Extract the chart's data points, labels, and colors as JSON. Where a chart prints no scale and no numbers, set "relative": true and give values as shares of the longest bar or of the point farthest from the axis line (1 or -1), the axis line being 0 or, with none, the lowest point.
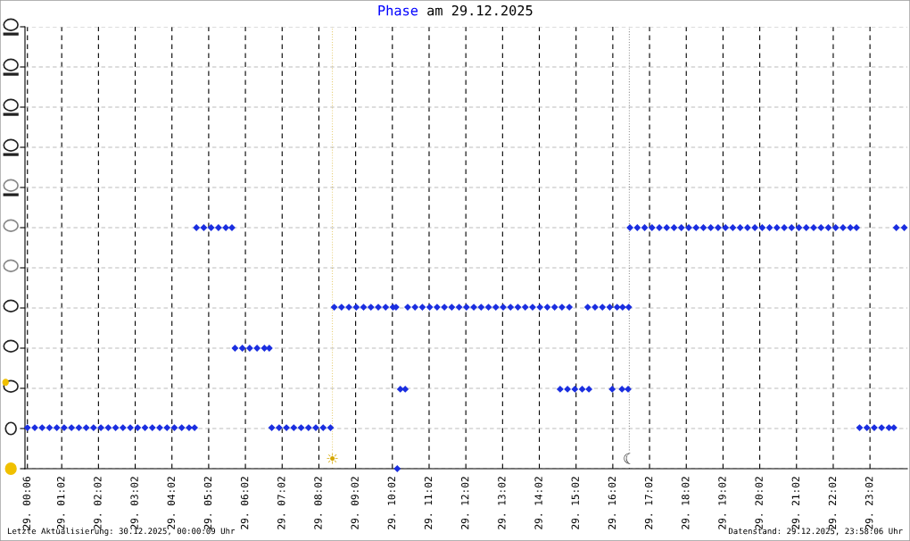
{
  "chart_data": {
    "type": "scatter",
    "title": "Phase am 29.12.2025",
    "annotations": [
      "Letzte Aktualisierung: 30.12.2025, 00:00:09 Uhr",
      "Datenstand: 29.12.2025, 23:58:06 Uhr"
    ],
    "ref_lines": [
      {
        "axis": "x",
        "value": "2025-12-29T08:24",
        "label": "☀",
        "color": "#d4a600"
      },
      {
        "axis": "x",
        "value": "2025-12-29T16:29",
        "label": "☾",
        "color": "#333333"
      }
    ],
    "series": [
      {
        "color": "#1a2ee0",
        "x": [
          "2025-12-29T00:06",
          "2025-12-29T00:18",
          "2025-12-29T00:30",
          "2025-12-29T00:42",
          "2025-12-29T00:54",
          "2025-12-29T01:06",
          "2025-12-29T01:18",
          "2025-12-29T01:30",
          "2025-12-29T01:42",
          "2025-12-29T01:54",
          "2025-12-29T02:06",
          "2025-12-29T02:18",
          "2025-12-29T02:30",
          "2025-12-29T02:42",
          "2025-12-29T02:54",
          "2025-12-29T03:06",
          "2025-12-29T03:18",
          "2025-12-29T03:30",
          "2025-12-29T03:42",
          "2025-12-29T03:54",
          "2025-12-29T04:06",
          "2025-12-29T04:18",
          "2025-12-29T04:30",
          "2025-12-29T04:39",
          "2025-12-29T04:42",
          "2025-12-29T04:54",
          "2025-12-29T05:06",
          "2025-12-29T05:18",
          "2025-12-29T05:30",
          "2025-12-29T05:40",
          "2025-12-29T05:45",
          "2025-12-29T05:57",
          "2025-12-29T06:09",
          "2025-12-29T06:21",
          "2025-12-29T06:33",
          "2025-12-29T06:41",
          "2025-12-29T06:45",
          "2025-12-29T06:57",
          "2025-12-29T07:09",
          "2025-12-29T07:21",
          "2025-12-29T07:33",
          "2025-12-29T07:45",
          "2025-12-29T07:57",
          "2025-12-29T08:09",
          "2025-12-29T08:21",
          "2025-12-29T08:27",
          "2025-12-29T08:39",
          "2025-12-29T08:51",
          "2025-12-29T09:03",
          "2025-12-29T09:15",
          "2025-12-29T09:27",
          "2025-12-29T09:39",
          "2025-12-29T09:51",
          "2025-12-29T10:03",
          "2025-12-29T10:08",
          "2025-12-29T10:10",
          "2025-12-29T10:15",
          "2025-12-29T10:23",
          "2025-12-29T10:27",
          "2025-12-29T10:39",
          "2025-12-29T10:51",
          "2025-12-29T11:03",
          "2025-12-29T11:15",
          "2025-12-29T11:27",
          "2025-12-29T11:39",
          "2025-12-29T11:51",
          "2025-12-29T12:03",
          "2025-12-29T12:15",
          "2025-12-29T12:27",
          "2025-12-29T12:39",
          "2025-12-29T12:51",
          "2025-12-29T13:03",
          "2025-12-29T13:15",
          "2025-12-29T13:27",
          "2025-12-29T13:39",
          "2025-12-29T13:51",
          "2025-12-29T14:03",
          "2025-12-29T14:15",
          "2025-12-29T14:27",
          "2025-12-29T14:39",
          "2025-12-29T14:51",
          "2025-12-29T14:36",
          "2025-12-29T14:48",
          "2025-12-29T15:00",
          "2025-12-29T15:12",
          "2025-12-29T15:23",
          "2025-12-29T15:21",
          "2025-12-29T15:33",
          "2025-12-29T15:45",
          "2025-12-29T15:57",
          "2025-12-29T16:09",
          "2025-12-29T16:18",
          "2025-12-29T16:28",
          "2025-12-29T16:01",
          "2025-12-29T16:17",
          "2025-12-29T16:27",
          "2025-12-29T16:30",
          "2025-12-29T16:42",
          "2025-12-29T16:54",
          "2025-12-29T17:06",
          "2025-12-29T17:18",
          "2025-12-29T17:30",
          "2025-12-29T17:42",
          "2025-12-29T17:54",
          "2025-12-29T18:06",
          "2025-12-29T18:18",
          "2025-12-29T18:30",
          "2025-12-29T18:42",
          "2025-12-29T18:54",
          "2025-12-29T19:06",
          "2025-12-29T19:18",
          "2025-12-29T19:30",
          "2025-12-29T19:42",
          "2025-12-29T19:54",
          "2025-12-29T20:06",
          "2025-12-29T20:18",
          "2025-12-29T20:30",
          "2025-12-29T20:42",
          "2025-12-29T20:54",
          "2025-12-29T21:06",
          "2025-12-29T21:18",
          "2025-12-29T21:30",
          "2025-12-29T21:42",
          "2025-12-29T21:54",
          "2025-12-29T22:06",
          "2025-12-29T22:18",
          "2025-12-29T22:30",
          "2025-12-29T22:40",
          "2025-12-29T22:45",
          "2025-12-29T22:57",
          "2025-12-29T23:09",
          "2025-12-29T23:21",
          "2025-12-29T23:33",
          "2025-12-29T23:41",
          "2025-12-29T23:45",
          "2025-12-29T23:58"
        ],
        "values": [
          0.17,
          0.17,
          0.17,
          0.17,
          0.17,
          0.17,
          0.17,
          0.17,
          0.17,
          0.17,
          0.17,
          0.17,
          0.17,
          0.17,
          0.17,
          0.17,
          0.17,
          0.17,
          0.17,
          0.17,
          0.17,
          0.17,
          0.17,
          0.17,
          1,
          1,
          1,
          1,
          1,
          1,
          0.5,
          0.5,
          0.5,
          0.5,
          0.5,
          0.5,
          0.17,
          0.17,
          0.17,
          0.17,
          0.17,
          0.17,
          0.17,
          0.17,
          0.17,
          0.67,
          0.67,
          0.67,
          0.67,
          0.67,
          0.67,
          0.67,
          0.67,
          0.67,
          0.67,
          0,
          0.33,
          0.33,
          0.67,
          0.67,
          0.67,
          0.67,
          0.67,
          0.67,
          0.67,
          0.67,
          0.67,
          0.67,
          0.67,
          0.67,
          0.67,
          0.67,
          0.67,
          0.67,
          0.67,
          0.67,
          0.67,
          0.67,
          0.67,
          0.67,
          0.67,
          0.33,
          0.33,
          0.33,
          0.33,
          0.33,
          0.67,
          0.67,
          0.67,
          0.67,
          0.67,
          0.67,
          0.67,
          0.33,
          0.33,
          0.33,
          1,
          1,
          1,
          1,
          1,
          1,
          1,
          1,
          1,
          1,
          1,
          1,
          1,
          1,
          1,
          1,
          1,
          1,
          1,
          1,
          1,
          1,
          1,
          1,
          1,
          1,
          1,
          1,
          1,
          1,
          1,
          1,
          0.17,
          0.17,
          0.17,
          0.17,
          0.17,
          0.17,
          1,
          1
        ]
      }
    ],
    "relative": true,
    "marker": "diamond",
    "grid": true,
    "xlim": [
      "2025-12-29T00:02",
      "2025-12-30T00:03"
    ],
    "xticks": [
      {
        "value": "2025-12-29T00:06",
        "label": "29. 00:06"
      },
      {
        "value": "2025-12-29T01:02",
        "label": "29. 01:02"
      },
      {
        "value": "2025-12-29T02:02",
        "label": "29. 02:02"
      },
      {
        "value": "2025-12-29T03:02",
        "label": "29. 03:02"
      },
      {
        "value": "2025-12-29T04:02",
        "label": "29. 04:02"
      },
      {
        "value": "2025-12-29T05:02",
        "label": "29. 05:02"
      },
      {
        "value": "2025-12-29T06:02",
        "label": "29. 06:02"
      },
      {
        "value": "2025-12-29T07:02",
        "label": "29. 07:02"
      },
      {
        "value": "2025-12-29T08:02",
        "label": "29. 08:02"
      },
      {
        "value": "2025-12-29T09:02",
        "label": "29. 09:02"
      },
      {
        "value": "2025-12-29T10:02",
        "label": "29. 10:02"
      },
      {
        "value": "2025-12-29T11:02",
        "label": "29. 11:02"
      },
      {
        "value": "2025-12-29T12:02",
        "label": "29. 12:02"
      },
      {
        "value": "2025-12-29T13:02",
        "label": "29. 13:02"
      },
      {
        "value": "2025-12-29T14:02",
        "label": "29. 14:02"
      },
      {
        "value": "2025-12-29T15:02",
        "label": "29. 15:02"
      },
      {
        "value": "2025-12-29T16:02",
        "label": "29. 16:02"
      },
      {
        "value": "2025-12-29T17:02",
        "label": "29. 17:02"
      },
      {
        "value": "2025-12-29T18:02",
        "label": "29. 18:02"
      },
      {
        "value": "2025-12-29T19:02",
        "label": "29. 19:02"
      },
      {
        "value": "2025-12-29T20:02",
        "label": "29. 20:02"
      },
      {
        "value": "2025-12-29T21:02",
        "label": "29. 21:02"
      },
      {
        "value": "2025-12-29T22:02",
        "label": "29. 22:02"
      },
      {
        "value": "2025-12-29T23:02",
        "label": "29. 23:02"
      }
    ],
    "tick_labels": "x"
  }
}
